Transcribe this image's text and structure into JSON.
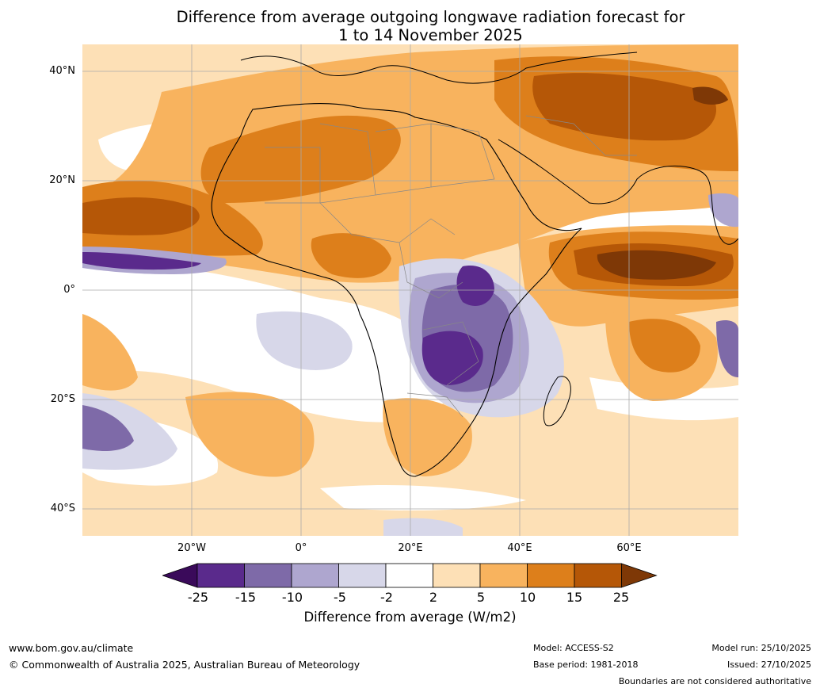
{
  "title": {
    "line1": "Difference from average outgoing longwave radiation forecast for",
    "line2": "1 to 14 November 2025"
  },
  "map": {
    "lat_labels": [
      "40°N",
      "20°N",
      "0°",
      "20°S",
      "40°S"
    ],
    "lon_labels": [
      "20°W",
      "0°",
      "20°E",
      "40°E",
      "60°E"
    ],
    "lon_range": [
      -40,
      80
    ],
    "lat_range": [
      -45,
      45
    ]
  },
  "colorbar": {
    "ticks": [
      "-25",
      "-15",
      "-10",
      "-5",
      "-2",
      "2",
      "5",
      "10",
      "15",
      "25"
    ],
    "colors": [
      "#3a0a5a",
      "#5a2a8c",
      "#7e6aa8",
      "#aea6cf",
      "#d7d7e9",
      "#ffffff",
      "#fde0b6",
      "#f8b35e",
      "#dd7f1b",
      "#b55707",
      "#7e3806"
    ],
    "label": "Difference from average (W/m2)"
  },
  "footer": {
    "url": "www.bom.gov.au/climate",
    "copyright": "© Commonwealth of Australia 2025, Australian Bureau of Meteorology",
    "model": "Model: ACCESS-S2",
    "base_period": "Base period: 1981-2018",
    "model_run": "Model run: 25/10/2025",
    "issued": "Issued: 27/10/2025",
    "disclaimer": "Boundaries are not considered authoritative"
  }
}
